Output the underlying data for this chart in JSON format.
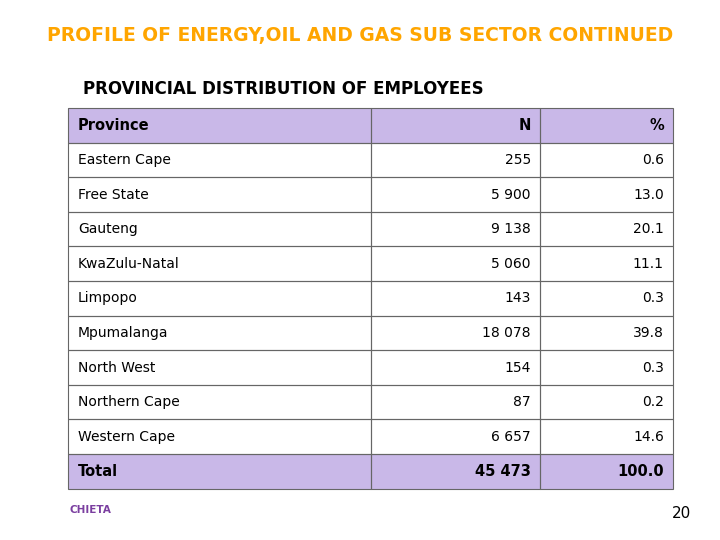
{
  "title": "PROFILE OF ENERGY,OIL AND GAS SUB SECTOR CONTINUED",
  "title_bg": "#7B3FA0",
  "title_color": "#FFA500",
  "subtitle": "PROVINCIAL DISTRIBUTION OF EMPLOYEES",
  "columns": [
    "Province",
    "N",
    "%"
  ],
  "rows": [
    [
      "Eastern Cape",
      "255",
      "0.6"
    ],
    [
      "Free State",
      "5 900",
      "13.0"
    ],
    [
      "Gauteng",
      "9 138",
      "20.1"
    ],
    [
      "KwaZulu-Natal",
      "5 060",
      "11.1"
    ],
    [
      "Limpopo",
      "143",
      "0.3"
    ],
    [
      "Mpumalanga",
      "18 078",
      "39.8"
    ],
    [
      "North West",
      "154",
      "0.3"
    ],
    [
      "Northern Cape",
      "87",
      "0.2"
    ],
    [
      "Western Cape",
      "6 657",
      "14.6"
    ]
  ],
  "total_row": [
    "Total",
    "45 473",
    "100.0"
  ],
  "header_bg": "#C9B8E8",
  "total_bg": "#C9B8E8",
  "row_bg_white": "#FFFFFF",
  "table_border_color": "#666666",
  "page_number": "20",
  "bg_color": "#FFFFFF"
}
